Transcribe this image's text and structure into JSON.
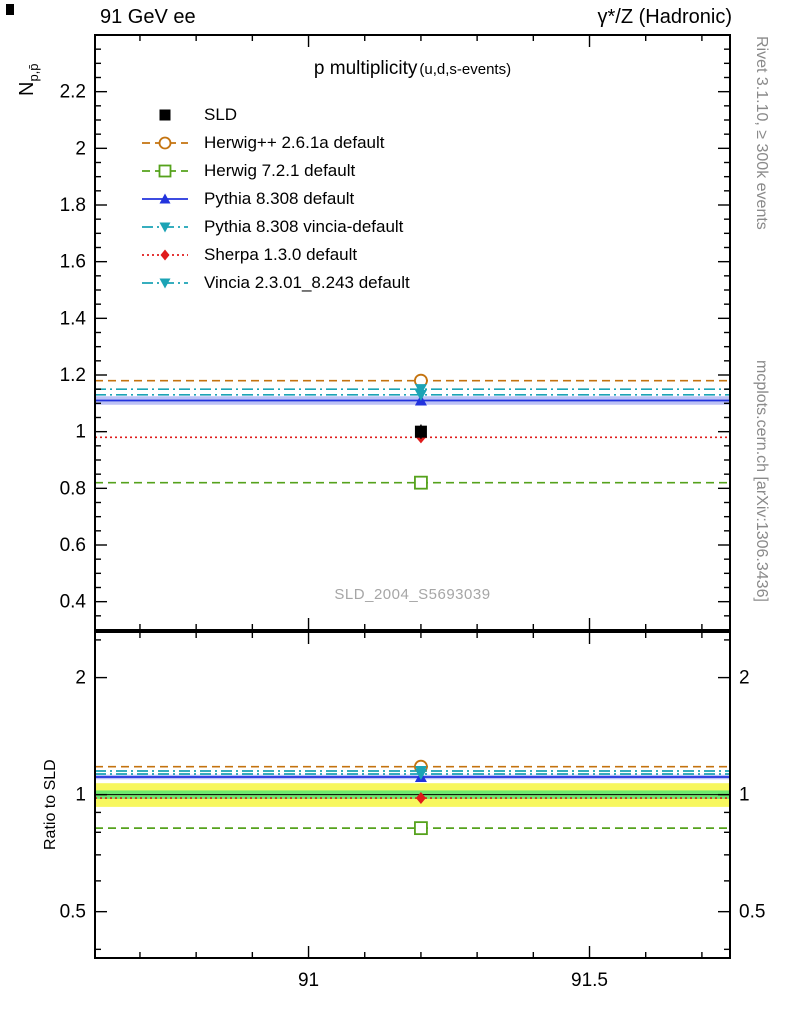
{
  "header": {
    "left_label": "91 GeV ee",
    "right_label": "γ*/Z (Hadronic)"
  },
  "axes": {
    "ylabel_main_base": "N",
    "ylabel_main_sub": "p,p̄",
    "ylabel_ratio": "Ratio to SLD"
  },
  "side_labels": {
    "rivet": "Rivet 3.1.10, ≥ 300k events",
    "mcplots": "mcplots.cern.ch [arXiv:1306.3436]"
  },
  "plot": {
    "title_main": "p multiplicity",
    "title_suffix": "(u,d,s-events)",
    "watermark": "SLD_2004_S5693039"
  },
  "chart_data": {
    "type": "line",
    "title": "p multiplicity (u,d,s-events)",
    "ylabel": "N_{p,pbar}",
    "ratio_ylabel": "Ratio to SLD",
    "xlim": [
      90.62,
      91.75
    ],
    "x_ticks_major": [
      91,
      91.5
    ],
    "x_tick_labels": [
      "91",
      "91.5"
    ],
    "x_minor_step": 0.1,
    "x_data": 91.2,
    "main": {
      "scale": "linear",
      "ylim": [
        0.3,
        2.4
      ],
      "y_ticks_major": [
        0.4,
        0.6,
        0.8,
        1.0,
        1.2,
        1.4,
        1.6,
        1.8,
        2.0,
        2.2
      ],
      "y_tick_labels": [
        "0.4",
        "0.6",
        "0.8",
        "1",
        "1.2",
        "1.4",
        "1.6",
        "1.8",
        "2",
        "2.2"
      ],
      "y_minor_step": 0.05
    },
    "ratio": {
      "scale": "log",
      "ylim": [
        0.38,
        2.62
      ],
      "y_ticks_major": [
        0.5,
        1,
        2
      ],
      "y_tick_labels": [
        "0.5",
        "1",
        "2"
      ],
      "y_ticks_minor": [
        0.4,
        0.6,
        0.7,
        0.8,
        0.9,
        2.5
      ],
      "ref_line": 1.0,
      "bands": [
        {
          "name": "yellow-uncertainty-band",
          "lo": 0.93,
          "hi": 1.07,
          "color": "#f7f75e"
        },
        {
          "name": "green-uncertainty-band",
          "lo": 0.975,
          "hi": 1.025,
          "color": "#6ee86e"
        }
      ]
    },
    "reference": {
      "name": "SLD",
      "value": 1.0,
      "err": 0.025,
      "color": "#000000",
      "marker": "square-filled"
    },
    "series": [
      {
        "name": "Herwig++ 2.6.1a default",
        "value": 1.18,
        "ratio": 1.18,
        "color": "#c4730f",
        "dash": "dashed",
        "marker": "circle-open"
      },
      {
        "name": "Herwig 7.2.1 default",
        "value": 0.82,
        "ratio": 0.82,
        "color": "#55a21c",
        "dash": "dashed",
        "marker": "square-open"
      },
      {
        "name": "Pythia 8.308 default",
        "value": 1.11,
        "ratio": 1.11,
        "color": "#2233dd",
        "dash": "solid",
        "marker": "triangle-up-filled",
        "band": 0.015
      },
      {
        "name": "Pythia 8.308 vincia-default",
        "value": 1.15,
        "ratio": 1.15,
        "color": "#1ba3b5",
        "dash": "dashdot",
        "marker": "triangle-down-filled"
      },
      {
        "name": "Sherpa 1.3.0 default",
        "value": 0.98,
        "ratio": 0.98,
        "color": "#e01b1b",
        "dash": "dotted",
        "marker": "diamond-filled"
      },
      {
        "name": "Vincia 2.3.01_8.243 default",
        "value": 1.13,
        "ratio": 1.13,
        "color": "#1ba3b5",
        "dash": "dashdot",
        "marker": "triangle-down-filled"
      }
    ],
    "legend_order": [
      "SLD",
      "Herwig++ 2.6.1a default",
      "Herwig 7.2.1 default",
      "Pythia 8.308 default",
      "Pythia 8.308 vincia-default",
      "Sherpa 1.3.0 default",
      "Vincia 2.3.01_8.243 default"
    ]
  }
}
